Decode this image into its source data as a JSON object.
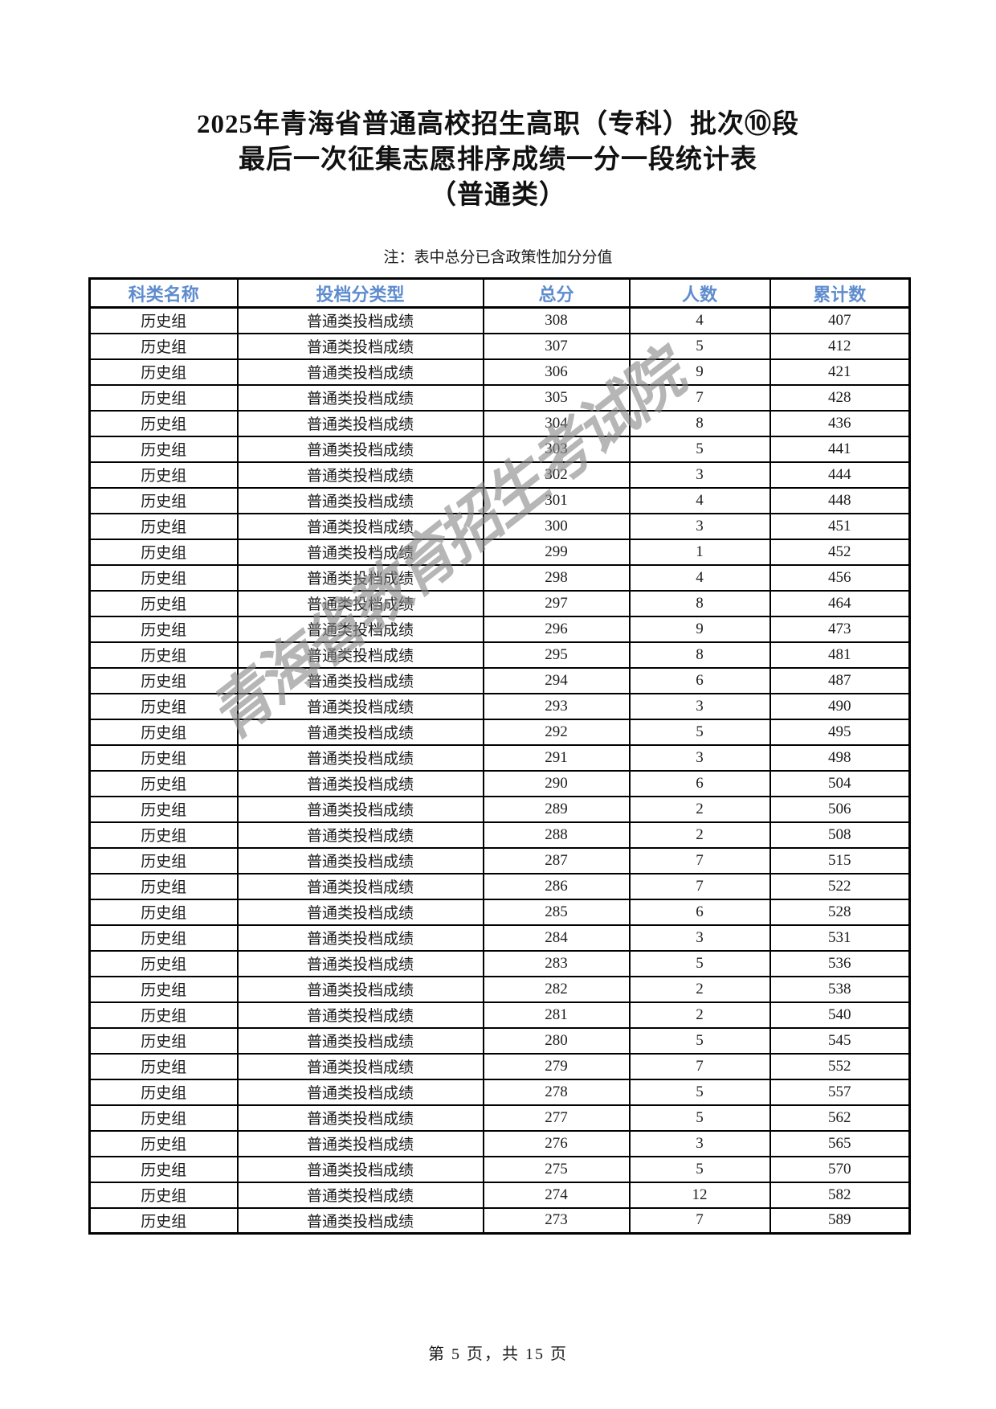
{
  "page": {
    "title_lines": [
      "2025年青海省普通高校招生高职（专科）批次⑩段",
      "最后一次征集志愿排序成绩一分一段统计表",
      "（普通类）"
    ],
    "note": "注：表中总分已含政策性加分分值",
    "watermark": "青海省教育招生考试院",
    "footer": "第 5 页，共 15 页"
  },
  "colors": {
    "header_text": "#5E8CCE",
    "watermark": "#8A8A8A",
    "border": "#000000"
  },
  "table": {
    "headers": [
      "科类名称",
      "投档分类型",
      "总分",
      "人数",
      "累计数"
    ],
    "rows": [
      [
        "历史组",
        "普通类投档成绩",
        "308",
        "4",
        "407"
      ],
      [
        "历史组",
        "普通类投档成绩",
        "307",
        "5",
        "412"
      ],
      [
        "历史组",
        "普通类投档成绩",
        "306",
        "9",
        "421"
      ],
      [
        "历史组",
        "普通类投档成绩",
        "305",
        "7",
        "428"
      ],
      [
        "历史组",
        "普通类投档成绩",
        "304",
        "8",
        "436"
      ],
      [
        "历史组",
        "普通类投档成绩",
        "303",
        "5",
        "441"
      ],
      [
        "历史组",
        "普通类投档成绩",
        "302",
        "3",
        "444"
      ],
      [
        "历史组",
        "普通类投档成绩",
        "301",
        "4",
        "448"
      ],
      [
        "历史组",
        "普通类投档成绩",
        "300",
        "3",
        "451"
      ],
      [
        "历史组",
        "普通类投档成绩",
        "299",
        "1",
        "452"
      ],
      [
        "历史组",
        "普通类投档成绩",
        "298",
        "4",
        "456"
      ],
      [
        "历史组",
        "普通类投档成绩",
        "297",
        "8",
        "464"
      ],
      [
        "历史组",
        "普通类投档成绩",
        "296",
        "9",
        "473"
      ],
      [
        "历史组",
        "普通类投档成绩",
        "295",
        "8",
        "481"
      ],
      [
        "历史组",
        "普通类投档成绩",
        "294",
        "6",
        "487"
      ],
      [
        "历史组",
        "普通类投档成绩",
        "293",
        "3",
        "490"
      ],
      [
        "历史组",
        "普通类投档成绩",
        "292",
        "5",
        "495"
      ],
      [
        "历史组",
        "普通类投档成绩",
        "291",
        "3",
        "498"
      ],
      [
        "历史组",
        "普通类投档成绩",
        "290",
        "6",
        "504"
      ],
      [
        "历史组",
        "普通类投档成绩",
        "289",
        "2",
        "506"
      ],
      [
        "历史组",
        "普通类投档成绩",
        "288",
        "2",
        "508"
      ],
      [
        "历史组",
        "普通类投档成绩",
        "287",
        "7",
        "515"
      ],
      [
        "历史组",
        "普通类投档成绩",
        "286",
        "7",
        "522"
      ],
      [
        "历史组",
        "普通类投档成绩",
        "285",
        "6",
        "528"
      ],
      [
        "历史组",
        "普通类投档成绩",
        "284",
        "3",
        "531"
      ],
      [
        "历史组",
        "普通类投档成绩",
        "283",
        "5",
        "536"
      ],
      [
        "历史组",
        "普通类投档成绩",
        "282",
        "2",
        "538"
      ],
      [
        "历史组",
        "普通类投档成绩",
        "281",
        "2",
        "540"
      ],
      [
        "历史组",
        "普通类投档成绩",
        "280",
        "5",
        "545"
      ],
      [
        "历史组",
        "普通类投档成绩",
        "279",
        "7",
        "552"
      ],
      [
        "历史组",
        "普通类投档成绩",
        "278",
        "5",
        "557"
      ],
      [
        "历史组",
        "普通类投档成绩",
        "277",
        "5",
        "562"
      ],
      [
        "历史组",
        "普通类投档成绩",
        "276",
        "3",
        "565"
      ],
      [
        "历史组",
        "普通类投档成绩",
        "275",
        "5",
        "570"
      ],
      [
        "历史组",
        "普通类投档成绩",
        "274",
        "12",
        "582"
      ],
      [
        "历史组",
        "普通类投档成绩",
        "273",
        "7",
        "589"
      ]
    ]
  }
}
